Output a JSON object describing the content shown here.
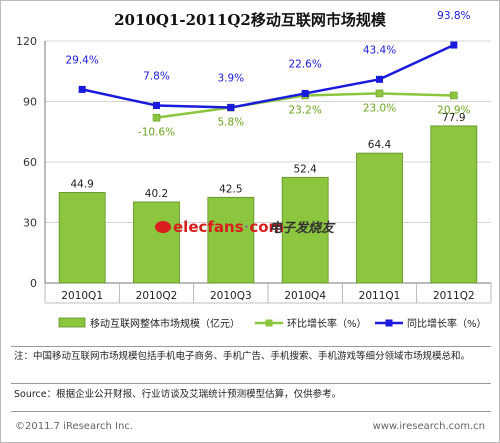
{
  "chart_data": {
    "type": "bar",
    "title": "2010Q1-2011Q2移动互联网市场规模",
    "categories": [
      "2010Q1",
      "2010Q2",
      "2010Q3",
      "2010Q4",
      "2011Q1",
      "2011Q2"
    ],
    "ylim": [
      0,
      120
    ],
    "yticks": [
      "0",
      "30",
      "60",
      "90",
      "120"
    ],
    "ytick_values": [
      0,
      30,
      60,
      90,
      120
    ],
    "grid": true,
    "legend_position": "bottom",
    "series": [
      {
        "name": "移动互联网整体市场规模（亿元）",
        "kind": "bar",
        "color": "#8cc63e",
        "values": [
          44.9,
          40.2,
          42.5,
          52.4,
          64.4,
          77.9
        ],
        "labels": [
          "44.9",
          "40.2",
          "42.5",
          "52.4",
          "64.4",
          "77.9"
        ]
      },
      {
        "name": "环比增长率（%）",
        "kind": "line",
        "color": "#8cc63e",
        "values": [
          null,
          82,
          87,
          93,
          94,
          93
        ],
        "labels": [
          "",
          "-10.6%",
          "5.8%",
          "23.2%",
          "23.0%",
          "20.9%"
        ]
      },
      {
        "name": "同比增长率（%）",
        "kind": "line",
        "color": "#1a1adc",
        "values": [
          96,
          88,
          87,
          94,
          101,
          118
        ],
        "labels": [
          "29.4%",
          "7.8%",
          "3.9%",
          "22.6%",
          "43.4%",
          "93.8%"
        ]
      }
    ]
  },
  "watermark": {
    "text_main": "elecfans",
    "text_dot": "·",
    "text_com": "com",
    "text_cn": "电子发烧友"
  },
  "notes": {
    "note_text": "注：中国移动互联网市场规模包括手机电子商务、手机广告、手机搜索、手机游戏等细分领域市场规模总和。",
    "source_text": "Source：根据企业公开财报、行业访谈及艾瑞统计预测模型估算，仅供参考。"
  },
  "footer": {
    "left": "©2011.7 iResearch Inc.",
    "right": "www.iresearch.com.cn"
  }
}
